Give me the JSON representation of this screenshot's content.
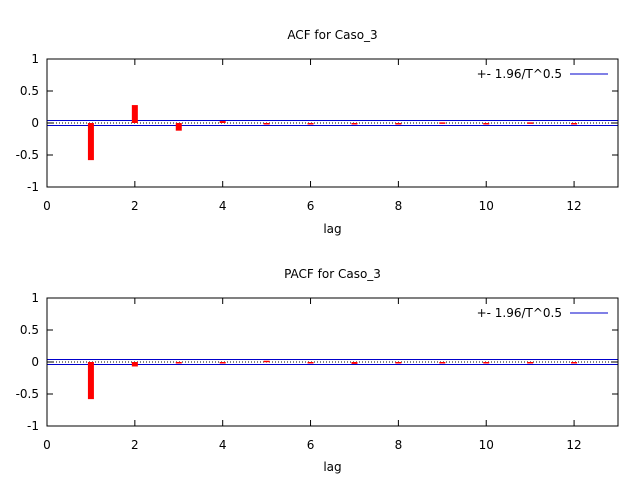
{
  "colors": {
    "bar": "#ff0000",
    "band": "#0000cc",
    "zero_line": "#000000",
    "grid": "#aaaaaa"
  },
  "chart_data": [
    {
      "type": "bar",
      "title": "ACF for Caso_3",
      "xlabel": "lag",
      "ylabel": "",
      "xlim": [
        0,
        13
      ],
      "ylim": [
        -1,
        1
      ],
      "xticks": [
        "0",
        "2",
        "4",
        "6",
        "8",
        "10",
        "12"
      ],
      "yticks": [
        "-1",
        "-0.5",
        "0",
        "0.5",
        "1"
      ],
      "legend": {
        "label": "+- 1.96/T^0.5",
        "position": "top-right"
      },
      "band": 0.04,
      "x": [
        1,
        2,
        3,
        4,
        5,
        6,
        7,
        8,
        9,
        10,
        11,
        12
      ],
      "values": [
        -0.58,
        0.28,
        -0.12,
        0.03,
        0.0,
        -0.01,
        0.0,
        -0.01,
        0.01,
        -0.01,
        0.01,
        -0.01
      ]
    },
    {
      "type": "bar",
      "title": "PACF for Caso_3",
      "xlabel": "lag",
      "ylabel": "",
      "xlim": [
        0,
        13
      ],
      "ylim": [
        -1,
        1
      ],
      "xticks": [
        "0",
        "2",
        "4",
        "6",
        "8",
        "10",
        "12"
      ],
      "yticks": [
        "-1",
        "-0.5",
        "0",
        "0.5",
        "1"
      ],
      "legend": {
        "label": "+- 1.96/T^0.5",
        "position": "top-right"
      },
      "band": 0.04,
      "x": [
        1,
        2,
        3,
        4,
        5,
        6,
        7,
        8,
        9,
        10,
        11,
        12
      ],
      "values": [
        -0.58,
        -0.07,
        0.0,
        0.0,
        0.02,
        -0.01,
        -0.03,
        -0.01,
        0.0,
        0.0,
        0.0,
        0.0
      ]
    }
  ]
}
